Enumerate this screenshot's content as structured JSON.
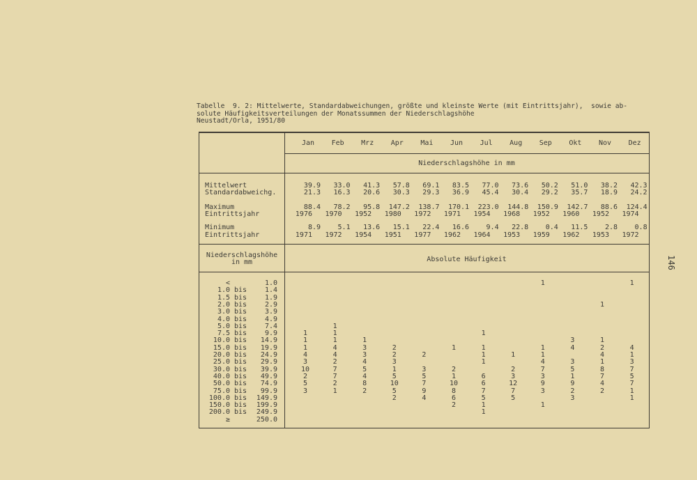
{
  "caption": {
    "line1": "Tabelle  9. 2: Mittelwerte, Standardabweichungen, größte und kleinste Werte (mit Eintrittsjahr),  sowie ab-",
    "line2": "solute Häufigkeitsverteilungen der Monatssummen der Niederschlagshöhe",
    "line3": "Neustadt/Orla, 1951/80"
  },
  "page_number": "146",
  "months": [
    "Jan",
    "Feb",
    "Mrz",
    "Apr",
    "Mai",
    "Jun",
    "Jul",
    "Aug",
    "Sep",
    "Okt",
    "Nov",
    "Dez"
  ],
  "unit_header": "Niederschlagshöhe in mm",
  "stats": [
    {
      "label": "Mittelwert",
      "values": [
        "39.9",
        "33.0",
        "41.3",
        "57.8",
        "69.1",
        "83.5",
        "77.0",
        "73.6",
        "50.2",
        "51.0",
        "38.2",
        "42.3"
      ]
    },
    {
      "label": "Standardabweichg.",
      "values": [
        "21.3",
        "16.3",
        "20.6",
        "30.3",
        "29.3",
        "36.9",
        "45.4",
        "30.4",
        "29.2",
        "35.7",
        "18.9",
        "24.2"
      ]
    },
    {
      "label": "Maximum",
      "values": [
        "88.4",
        "78.2",
        "95.8",
        "147.2",
        "138.7",
        "170.1",
        "223.0",
        "144.8",
        "150.9",
        "142.7",
        "88.6",
        "124.4"
      ]
    },
    {
      "label": "Eintrittsjahr",
      "years": [
        "1976",
        "1970",
        "1952",
        "1980",
        "1972",
        "1971",
        "1954",
        "1968",
        "1952",
        "1960",
        "1952",
        "1974"
      ]
    },
    {
      "label": "Minimum",
      "values": [
        "8.9",
        "5.1",
        "13.6",
        "15.1",
        "22.4",
        "16.6",
        "9.4",
        "22.8",
        "0.4",
        "11.5",
        "2.8",
        "0.8"
      ]
    },
    {
      "label": "Eintrittsjahr",
      "years": [
        "1971",
        "1972",
        "1954",
        "1951",
        "1977",
        "1962",
        "1964",
        "1953",
        "1959",
        "1962",
        "1953",
        "1972"
      ]
    }
  ],
  "class_header": {
    "line1": "Niederschlagshöhe",
    "line2": "in mm"
  },
  "freq_header": "Absolute Häufigkeit",
  "classes": [
    {
      "from": "<",
      "sep": "",
      "to": "1.0",
      "counts": [
        "",
        "",
        "",
        "",
        "",
        "",
        "",
        "",
        "1",
        "",
        "",
        "1"
      ]
    },
    {
      "from": "1.0",
      "sep": "bis",
      "to": "1.4",
      "counts": [
        "",
        "",
        "",
        "",
        "",
        "",
        "",
        "",
        "",
        "",
        "",
        ""
      ]
    },
    {
      "from": "1.5",
      "sep": "bis",
      "to": "1.9",
      "counts": [
        "",
        "",
        "",
        "",
        "",
        "",
        "",
        "",
        "",
        "",
        "",
        ""
      ]
    },
    {
      "from": "2.0",
      "sep": "bis",
      "to": "2.9",
      "counts": [
        "",
        "",
        "",
        "",
        "",
        "",
        "",
        "",
        "",
        "",
        "1",
        ""
      ]
    },
    {
      "from": "3.0",
      "sep": "bis",
      "to": "3.9",
      "counts": [
        "",
        "",
        "",
        "",
        "",
        "",
        "",
        "",
        "",
        "",
        "",
        ""
      ]
    },
    {
      "from": "4.0",
      "sep": "bis",
      "to": "4.9",
      "counts": [
        "",
        "",
        "",
        "",
        "",
        "",
        "",
        "",
        "",
        "",
        "",
        ""
      ]
    },
    {
      "from": "5.0",
      "sep": "bis",
      "to": "7.4",
      "counts": [
        "",
        "1",
        "",
        "",
        "",
        "",
        "",
        "",
        "",
        "",
        "",
        ""
      ]
    },
    {
      "from": "7.5",
      "sep": "bis",
      "to": "9.9",
      "counts": [
        "1",
        "1",
        "",
        "",
        "",
        "",
        "1",
        "",
        "",
        "",
        "",
        ""
      ]
    },
    {
      "from": "10.0",
      "sep": "bis",
      "to": "14.9",
      "counts": [
        "1",
        "1",
        "1",
        "",
        "",
        "",
        "",
        "",
        "",
        "3",
        "1",
        ""
      ]
    },
    {
      "from": "15.0",
      "sep": "bis",
      "to": "19.9",
      "counts": [
        "1",
        "4",
        "3",
        "2",
        "",
        "1",
        "1",
        "",
        "1",
        "4",
        "2",
        "4"
      ]
    },
    {
      "from": "20.0",
      "sep": "bis",
      "to": "24.9",
      "counts": [
        "4",
        "4",
        "3",
        "2",
        "2",
        "",
        "1",
        "1",
        "1",
        "",
        "4",
        "1"
      ]
    },
    {
      "from": "25.0",
      "sep": "bis",
      "to": "29.9",
      "counts": [
        "3",
        "2",
        "4",
        "3",
        "",
        "",
        "1",
        "",
        "4",
        "3",
        "1",
        "3"
      ]
    },
    {
      "from": "30.0",
      "sep": "bis",
      "to": "39.9",
      "counts": [
        "10",
        "7",
        "5",
        "1",
        "3",
        "2",
        "",
        "2",
        "7",
        "5",
        "8",
        "7"
      ]
    },
    {
      "from": "40.0",
      "sep": "bis",
      "to": "49.9",
      "counts": [
        "2",
        "7",
        "4",
        "5",
        "5",
        "1",
        "6",
        "3",
        "3",
        "1",
        "7",
        "5"
      ]
    },
    {
      "from": "50.0",
      "sep": "bis",
      "to": "74.9",
      "counts": [
        "5",
        "2",
        "8",
        "10",
        "7",
        "10",
        "6",
        "12",
        "9",
        "9",
        "4",
        "7"
      ]
    },
    {
      "from": "75.0",
      "sep": "bis",
      "to": "99.9",
      "counts": [
        "3",
        "1",
        "2",
        "5",
        "9",
        "8",
        "7",
        "7",
        "3",
        "2",
        "2",
        "1"
      ]
    },
    {
      "from": "100.0",
      "sep": "bis",
      "to": "149.9",
      "counts": [
        "",
        "",
        "",
        "2",
        "4",
        "6",
        "5",
        "5",
        "",
        "3",
        "",
        "1"
      ]
    },
    {
      "from": "150.0",
      "sep": "bis",
      "to": "199.9",
      "counts": [
        "",
        "",
        "",
        "",
        "",
        "2",
        "1",
        "",
        "1",
        "",
        "",
        ""
      ]
    },
    {
      "from": "200.0",
      "sep": "bis",
      "to": "249.9",
      "counts": [
        "",
        "",
        "",
        "",
        "",
        "",
        "1",
        "",
        "",
        "",
        "",
        ""
      ]
    },
    {
      "from": "≥",
      "sep": "",
      "to": "250.0",
      "counts": [
        "",
        "",
        "",
        "",
        "",
        "",
        "",
        "",
        "",
        "",
        "",
        ""
      ]
    }
  ],
  "colors": {
    "paper": "#e6d9ad",
    "ink": "#3b3a36"
  }
}
